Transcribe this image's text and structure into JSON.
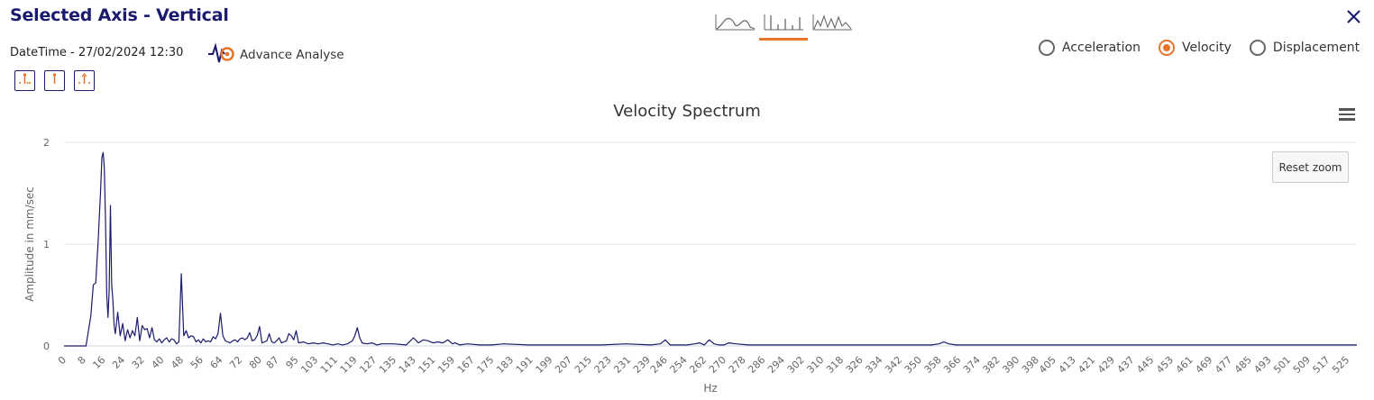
{
  "header": {
    "title": "Selected Axis - Vertical",
    "datetime": "DateTime - 27/02/2024 12:30",
    "advance_label": "Advance Analyse"
  },
  "toolbar": {
    "tools": [
      "peak-cursor-icon",
      "single-cursor-icon",
      "harmonic-cursor-icon"
    ]
  },
  "view_tabs": [
    {
      "name": "waveform-view-icon",
      "active": false
    },
    {
      "name": "spectrum-view-icon",
      "active": true
    },
    {
      "name": "envelope-view-icon",
      "active": false
    }
  ],
  "radios": {
    "acceleration": "Acceleration",
    "velocity": "Velocity",
    "displacement": "Displacement",
    "selected": "velocity"
  },
  "colors": {
    "accent": "#e8732a",
    "line": "#1a1a6e",
    "title": "#1a1a6e"
  },
  "chart": {
    "reset_zoom": "Reset zoom"
  },
  "chart_data": {
    "type": "line",
    "title": "Velocity Spectrum",
    "xlabel": "Hz",
    "ylabel": "Amplitude in mm/sec",
    "ylim": [
      0,
      2
    ],
    "yticks": [
      0,
      1,
      2
    ],
    "xlim": [
      0,
      529
    ],
    "xticks": [
      0,
      8,
      16,
      24,
      32,
      40,
      48,
      56,
      64,
      72,
      80,
      87,
      95,
      103,
      111,
      119,
      127,
      135,
      143,
      151,
      159,
      167,
      175,
      183,
      191,
      199,
      207,
      215,
      223,
      231,
      239,
      246,
      254,
      262,
      270,
      278,
      286,
      294,
      302,
      310,
      318,
      326,
      334,
      342,
      350,
      358,
      366,
      374,
      382,
      390,
      398,
      405,
      413,
      421,
      429,
      437,
      445,
      453,
      461,
      469,
      477,
      485,
      493,
      501,
      509,
      517,
      525
    ],
    "grid": true,
    "series": [
      {
        "x": [
          0,
          5,
          9,
          10,
          11,
          12,
          13,
          14,
          15,
          15.5,
          16,
          16.5,
          17,
          17.5,
          18,
          18.5,
          19,
          19.5,
          20,
          20.5,
          21,
          22,
          23,
          24,
          25,
          26,
          27,
          28,
          29,
          30,
          31,
          32,
          33,
          34,
          35,
          36,
          37,
          38,
          39,
          40,
          41,
          42,
          43,
          44,
          45,
          46,
          47,
          48,
          49,
          50,
          51,
          52,
          53,
          54,
          55,
          56,
          57,
          58,
          59,
          60,
          61,
          62,
          63,
          64,
          65,
          66,
          67,
          68,
          69,
          70,
          71,
          72,
          73,
          74,
          75,
          76,
          77,
          78,
          79,
          80,
          81,
          82,
          83,
          84,
          85,
          86,
          87,
          88,
          89,
          90,
          91,
          92,
          93,
          94,
          95,
          96,
          98,
          100,
          102,
          104,
          106,
          108,
          110,
          112,
          114,
          116,
          118,
          119,
          120,
          121,
          122,
          124,
          126,
          128,
          130,
          135,
          140,
          143,
          145,
          147,
          149,
          151,
          153,
          155,
          157,
          159,
          160,
          162,
          165,
          170,
          175,
          180,
          190,
          200,
          210,
          220,
          230,
          240,
          244,
          246,
          248,
          250,
          255,
          258,
          260,
          262,
          264,
          266,
          268,
          270,
          272,
          275,
          280,
          290,
          300,
          320,
          340,
          350,
          355,
          358,
          360,
          362,
          365,
          380,
          400,
          420,
          450,
          480,
          500,
          529
        ],
        "y": [
          0,
          0,
          0,
          0.15,
          0.3,
          0.6,
          0.62,
          1.05,
          1.55,
          1.85,
          1.9,
          1.75,
          1.2,
          0.5,
          0.28,
          0.55,
          1.38,
          0.6,
          0.45,
          0.2,
          0.12,
          0.33,
          0.1,
          0.22,
          0.05,
          0.16,
          0.08,
          0.15,
          0.1,
          0.28,
          0.05,
          0.2,
          0.16,
          0.17,
          0.08,
          0.18,
          0.06,
          0.04,
          0.07,
          0.03,
          0.06,
          0.08,
          0.04,
          0.07,
          0.06,
          0.02,
          0.04,
          0.71,
          0.1,
          0.15,
          0.08,
          0.1,
          0.09,
          0.04,
          0.06,
          0.03,
          0.07,
          0.04,
          0.05,
          0.04,
          0.09,
          0.07,
          0.12,
          0.32,
          0.1,
          0.05,
          0.04,
          0.03,
          0.05,
          0.06,
          0.04,
          0.07,
          0.08,
          0.06,
          0.08,
          0.13,
          0.05,
          0.06,
          0.1,
          0.19,
          0.03,
          0.04,
          0.05,
          0.12,
          0.04,
          0.03,
          0.05,
          0.08,
          0.03,
          0.04,
          0.05,
          0.12,
          0.1,
          0.06,
          0.15,
          0.03,
          0.04,
          0.02,
          0.03,
          0.02,
          0.03,
          0.02,
          0.01,
          0.02,
          0.01,
          0.02,
          0.05,
          0.1,
          0.18,
          0.08,
          0.03,
          0.02,
          0.03,
          0.01,
          0.02,
          0.02,
          0.01,
          0.08,
          0.03,
          0.06,
          0.05,
          0.03,
          0.04,
          0.03,
          0.06,
          0.02,
          0.03,
          0.01,
          0.02,
          0.01,
          0.01,
          0.02,
          0.01,
          0.01,
          0.01,
          0.01,
          0.02,
          0.01,
          0.02,
          0.06,
          0.01,
          0.01,
          0.01,
          0.02,
          0.03,
          0.01,
          0.06,
          0.02,
          0.01,
          0.01,
          0.03,
          0.02,
          0.01,
          0.01,
          0.01,
          0.01,
          0.01,
          0.01,
          0.01,
          0.02,
          0.04,
          0.02,
          0.01,
          0.01,
          0.01,
          0.01,
          0.01,
          0.01,
          0.01,
          0.01
        ]
      }
    ]
  }
}
